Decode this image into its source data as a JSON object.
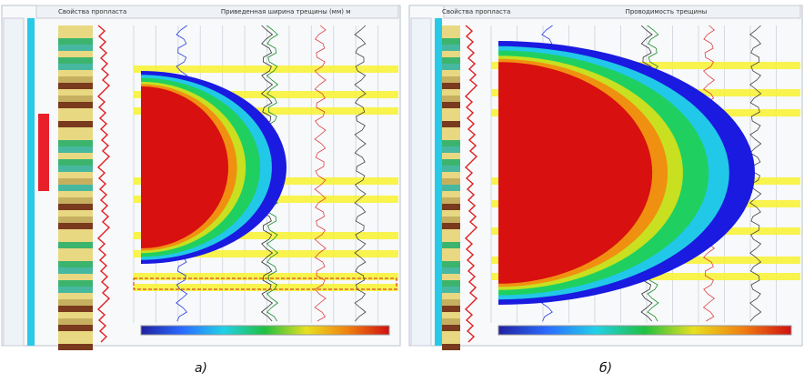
{
  "panels": [
    {
      "caption": "а)",
      "headers": [
        "Свойства пропласта",
        "Приведенная ширина трещины (мм) м"
      ]
    },
    {
      "caption": "б)",
      "headers": [
        "Свойства пропласта",
        "Проводимость трещины"
      ]
    }
  ]
}
